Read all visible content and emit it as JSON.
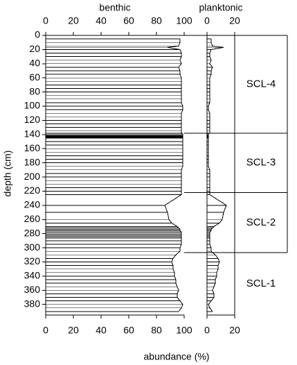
{
  "chart_data": {
    "type": "bar",
    "y_label": "depth (cm)",
    "x_label": "abundance (%)",
    "ylim": [
      0,
      395
    ],
    "yticks": [
      0,
      20,
      40,
      60,
      80,
      100,
      120,
      140,
      160,
      180,
      200,
      220,
      240,
      260,
      280,
      300,
      320,
      340,
      360,
      380
    ],
    "depths": [
      5,
      10,
      15,
      17,
      20,
      25,
      30,
      35,
      40,
      45,
      50,
      55,
      60,
      65,
      70,
      75,
      80,
      85,
      90,
      95,
      100,
      105,
      110,
      115,
      120,
      125,
      130,
      135,
      138,
      139,
      140,
      141,
      142,
      143,
      144,
      145,
      150,
      155,
      160,
      165,
      170,
      175,
      180,
      185,
      190,
      195,
      200,
      205,
      210,
      215,
      220,
      225,
      240,
      250,
      260,
      265,
      270,
      272,
      274,
      276,
      278,
      280,
      281,
      282,
      283,
      284,
      285,
      286,
      287,
      290,
      295,
      300,
      305,
      310,
      315,
      320,
      325,
      330,
      335,
      340,
      345,
      350,
      355,
      360,
      365,
      370,
      375,
      380,
      385,
      390
    ],
    "series": [
      {
        "name": "benthic",
        "xlim": [
          0,
          100
        ],
        "xticks": [
          0,
          20,
          40,
          60,
          80,
          100
        ],
        "values": [
          97,
          97,
          96,
          88,
          97,
          98,
          98,
          97,
          98,
          96,
          97,
          97,
          98,
          98,
          98,
          98,
          98,
          98,
          98,
          98,
          99,
          99,
          98,
          98,
          98,
          98,
          98,
          98,
          98,
          99,
          99,
          99,
          99,
          99,
          99,
          99,
          99,
          99,
          99,
          99,
          99,
          99,
          99,
          99,
          98,
          98,
          98,
          98,
          98,
          98,
          98,
          98,
          86,
          88,
          89,
          91,
          95,
          96,
          97,
          97,
          98,
          98,
          98,
          98,
          98,
          98,
          98,
          98,
          98,
          98,
          98,
          97,
          97,
          94,
          92,
          91,
          92,
          92,
          93,
          93,
          94,
          94,
          95,
          96,
          95,
          95,
          97,
          99,
          98,
          96
        ]
      },
      {
        "name": "planktonic",
        "xlim": [
          0,
          20
        ],
        "xticks": [
          0,
          20
        ],
        "values": [
          3,
          3,
          4,
          12,
          3,
          2,
          2,
          3,
          2,
          4,
          3,
          3,
          2,
          2,
          2,
          2,
          2,
          2,
          2,
          2,
          1,
          1,
          2,
          2,
          2,
          2,
          2,
          2,
          2,
          1,
          1,
          1,
          1,
          1,
          1,
          1,
          1,
          1,
          1,
          1,
          1,
          1,
          1,
          1,
          2,
          2,
          2,
          2,
          2,
          2,
          2,
          2,
          14,
          12,
          11,
          9,
          5,
          4,
          3,
          3,
          2,
          2,
          2,
          2,
          2,
          2,
          2,
          2,
          2,
          2,
          2,
          3,
          3,
          6,
          8,
          9,
          8,
          8,
          7,
          7,
          6,
          6,
          5,
          4,
          5,
          5,
          3,
          1,
          2,
          4
        ]
      }
    ],
    "zones": [
      {
        "label": "SCL-4",
        "top": 0,
        "bottom": 138
      },
      {
        "label": "SCL-3",
        "top": 138,
        "bottom": 222
      },
      {
        "label": "SCL-2",
        "top": 222,
        "bottom": 307
      },
      {
        "label": "SCL-1",
        "top": 307,
        "bottom": 395
      }
    ]
  }
}
